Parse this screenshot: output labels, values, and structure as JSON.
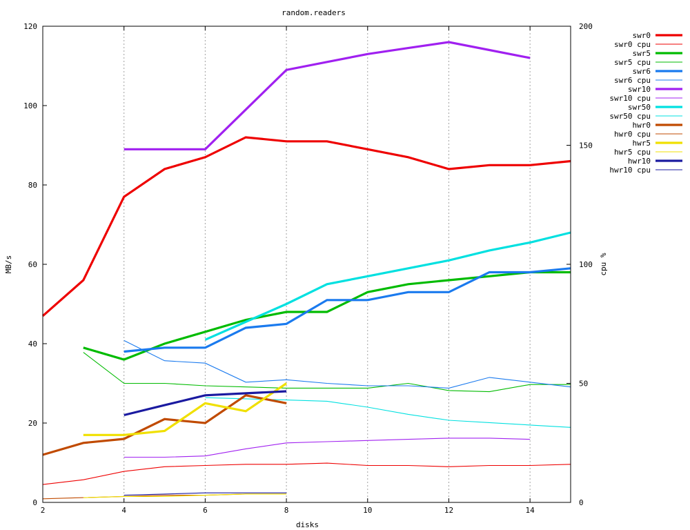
{
  "chart_data": {
    "type": "line",
    "title": "random.readers",
    "xlabel": "disks",
    "ylabel": "MB/s",
    "y2label": "cpu %",
    "xlim": [
      2,
      15
    ],
    "ylim": [
      0,
      120
    ],
    "y2lim": [
      0,
      200
    ],
    "xticks": [
      2,
      4,
      6,
      8,
      10,
      12,
      14
    ],
    "yticks": [
      0,
      20,
      40,
      60,
      80,
      100,
      120
    ],
    "y2ticks": [
      0,
      50,
      100,
      150,
      200
    ],
    "grid": "vertical dotted at x ticks",
    "legend_position": "top-right, outside plot",
    "series": [
      {
        "name": "swr0",
        "axis": "y",
        "color": "#ee0000",
        "width": "thick",
        "x": [
          2,
          3,
          4,
          5,
          6,
          7,
          8,
          9,
          10,
          11,
          12,
          13,
          14,
          15
        ],
        "values": [
          47,
          56,
          77,
          84,
          87,
          92,
          91,
          91,
          89,
          87,
          84,
          85,
          85,
          86
        ]
      },
      {
        "name": "swr0 cpu",
        "axis": "y2",
        "color": "#ee0000",
        "width": "thin",
        "x": [
          2,
          3,
          4,
          5,
          6,
          7,
          8,
          9,
          10,
          11,
          12,
          13,
          14,
          15
        ],
        "values": [
          7.5,
          9.5,
          13,
          15,
          15.5,
          16,
          16,
          16.5,
          15.5,
          15.5,
          15,
          15.5,
          15.5,
          16
        ]
      },
      {
        "name": "swr5",
        "axis": "y",
        "color": "#00bb00",
        "width": "thick",
        "x": [
          3,
          4,
          5,
          6,
          7,
          8,
          9,
          10,
          11,
          12,
          13,
          14,
          15
        ],
        "values": [
          39,
          36,
          40,
          43,
          46,
          48,
          48,
          53,
          55,
          56,
          57,
          58,
          58
        ]
      },
      {
        "name": "swr5 cpu",
        "axis": "y2",
        "color": "#00bb00",
        "width": "thin",
        "x": [
          3,
          4,
          5,
          6,
          7,
          8,
          9,
          10,
          11,
          12,
          13,
          14,
          15
        ],
        "values": [
          63,
          50,
          50,
          49,
          48.5,
          48,
          48,
          48,
          50,
          47,
          46.5,
          49.5,
          49.5
        ]
      },
      {
        "name": "swr6",
        "axis": "y",
        "color": "#1a7aee",
        "width": "thick",
        "x": [
          4,
          5,
          6,
          7,
          8,
          9,
          10,
          11,
          12,
          13,
          14,
          15
        ],
        "values": [
          38,
          39,
          39,
          44,
          45,
          51,
          51,
          53,
          53,
          58,
          58,
          59
        ]
      },
      {
        "name": "swr6 cpu",
        "axis": "y2",
        "color": "#1a7aee",
        "width": "thin",
        "x": [
          4,
          5,
          6,
          7,
          8,
          9,
          10,
          11,
          12,
          13,
          14,
          15
        ],
        "values": [
          68,
          59.5,
          58.5,
          50.5,
          51.5,
          50,
          49,
          49,
          48,
          52.5,
          50.5,
          48.5
        ]
      },
      {
        "name": "swr10",
        "axis": "y",
        "color": "#a020f0",
        "width": "thick",
        "x": [
          4,
          5,
          6,
          7,
          8,
          9,
          10,
          11,
          12,
          13,
          14
        ],
        "values": [
          89,
          89,
          89,
          99,
          109,
          111,
          113,
          114.5,
          116,
          114,
          112
        ]
      },
      {
        "name": "swr10 cpu",
        "axis": "y2",
        "color": "#a020f0",
        "width": "thin",
        "x": [
          4,
          5,
          6,
          7,
          8,
          9,
          10,
          11,
          12,
          13,
          14
        ],
        "values": [
          19,
          19,
          19.5,
          22.5,
          25,
          25.5,
          26,
          26.5,
          27,
          27,
          26.5
        ]
      },
      {
        "name": "swr50",
        "axis": "y",
        "color": "#00e0e0",
        "width": "thick",
        "x": [
          6,
          7,
          8,
          9,
          10,
          11,
          12,
          13,
          14,
          15
        ],
        "values": [
          41,
          45.5,
          50,
          55,
          57,
          59,
          61,
          63.5,
          65.5,
          68
        ]
      },
      {
        "name": "swr50 cpu",
        "axis": "y2",
        "color": "#00e0e0",
        "width": "thin",
        "x": [
          6,
          7,
          8,
          9,
          10,
          11,
          12,
          13,
          14,
          15
        ],
        "values": [
          44,
          43.5,
          43,
          42.5,
          40,
          37,
          34.5,
          33.5,
          32.5,
          31.5
        ]
      },
      {
        "name": "hwr0",
        "axis": "y",
        "color": "#c04a00",
        "width": "thick",
        "x": [
          2,
          3,
          4,
          5,
          6,
          7,
          8
        ],
        "values": [
          12,
          15,
          16,
          21,
          20,
          27,
          25
        ]
      },
      {
        "name": "hwr0 cpu",
        "axis": "y2",
        "color": "#c04a00",
        "width": "thin",
        "x": [
          2,
          3,
          4,
          5,
          6,
          7,
          8
        ],
        "values": [
          1.5,
          2,
          2.5,
          3,
          3,
          3.5,
          3.5
        ]
      },
      {
        "name": "hwr5",
        "axis": "y",
        "color": "#f0e000",
        "width": "thick",
        "x": [
          3,
          4,
          5,
          6,
          7,
          8
        ],
        "values": [
          17,
          17,
          18,
          25,
          23,
          30
        ]
      },
      {
        "name": "hwr5 cpu",
        "axis": "y2",
        "color": "#f0e000",
        "width": "thin",
        "x": [
          3,
          4,
          5,
          6,
          7,
          8
        ],
        "values": [
          2,
          2.5,
          2.5,
          3,
          3.5,
          3.5
        ]
      },
      {
        "name": "hwr10",
        "axis": "y",
        "color": "#1a1aa0",
        "width": "thick",
        "x": [
          4,
          5,
          6,
          7,
          8
        ],
        "values": [
          22,
          24.5,
          27,
          27.5,
          28
        ]
      },
      {
        "name": "hwr10 cpu",
        "axis": "y2",
        "color": "#1a1aa0",
        "width": "thin",
        "x": [
          4,
          5,
          6,
          7,
          8
        ],
        "values": [
          3,
          3.5,
          4,
          4,
          4
        ]
      }
    ]
  }
}
